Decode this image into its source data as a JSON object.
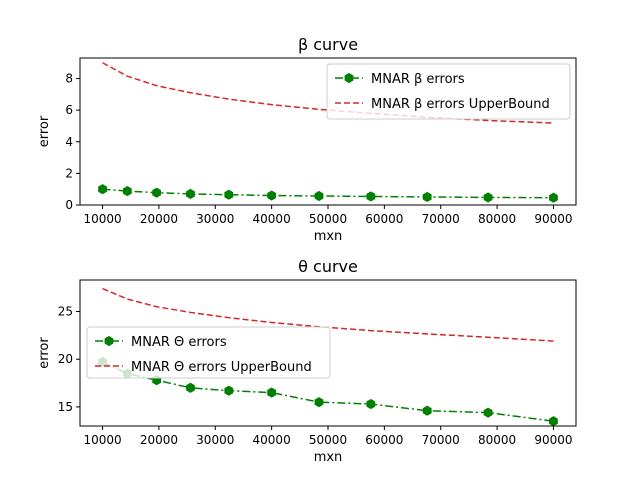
{
  "chart_data": [
    {
      "type": "line",
      "title": "β curve",
      "xlabel": "mxn",
      "ylabel": "error",
      "xlim": [
        6000,
        94000
      ],
      "ylim": [
        0,
        9.3
      ],
      "xticks": [
        10000,
        20000,
        30000,
        40000,
        50000,
        60000,
        70000,
        80000,
        90000
      ],
      "xtick_labels": [
        "10000",
        "20000",
        "30000",
        "40000",
        "50000",
        "60000",
        "70000",
        "80000",
        "90000"
      ],
      "yticks": [
        0,
        2,
        4,
        6,
        8
      ],
      "ytick_labels": [
        "0",
        "2",
        "4",
        "6",
        "8"
      ],
      "legend_position": "top-right",
      "grid": false,
      "x": [
        10000,
        14400,
        19600,
        25600,
        32400,
        40000,
        48400,
        57600,
        67600,
        78400,
        90000
      ],
      "series": [
        {
          "name": "MNAR β errors",
          "color": "#008000",
          "style": "dashdot",
          "marker": "hexagon",
          "values": [
            1.0,
            0.88,
            0.78,
            0.7,
            0.65,
            0.6,
            0.57,
            0.54,
            0.51,
            0.48,
            0.46
          ]
        },
        {
          "name": "MNAR β errors UpperBound",
          "color": "#d62728",
          "style": "dashed",
          "marker": "none",
          "values": [
            9.0,
            8.15,
            7.55,
            7.1,
            6.7,
            6.35,
            6.05,
            5.8,
            5.55,
            5.35,
            5.18
          ]
        }
      ]
    },
    {
      "type": "line",
      "title": "θ curve",
      "xlabel": "mxn",
      "ylabel": "error",
      "xlim": [
        6000,
        94000
      ],
      "ylim": [
        13.0,
        28.3
      ],
      "xticks": [
        10000,
        20000,
        30000,
        40000,
        50000,
        60000,
        70000,
        80000,
        90000
      ],
      "xtick_labels": [
        "10000",
        "20000",
        "30000",
        "40000",
        "50000",
        "60000",
        "70000",
        "80000",
        "90000"
      ],
      "yticks": [
        15,
        20,
        25
      ],
      "ytick_labels": [
        "15",
        "20",
        "25"
      ],
      "legend_position": "center-left",
      "grid": false,
      "x": [
        10000,
        14400,
        19600,
        25600,
        32400,
        40000,
        48400,
        57600,
        67600,
        78400,
        90000
      ],
      "series": [
        {
          "name": "MNAR Θ errors",
          "color": "#008000",
          "style": "dashdot",
          "marker": "hexagon",
          "values": [
            19.7,
            18.5,
            17.8,
            17.0,
            16.7,
            16.5,
            15.5,
            15.3,
            14.6,
            14.4,
            13.5
          ]
        },
        {
          "name": "MNAR Θ errors UpperBound",
          "color": "#d62728",
          "style": "dashed",
          "marker": "none",
          "values": [
            27.4,
            26.3,
            25.5,
            24.9,
            24.35,
            23.85,
            23.4,
            23.0,
            22.65,
            22.3,
            21.9
          ]
        }
      ]
    }
  ]
}
